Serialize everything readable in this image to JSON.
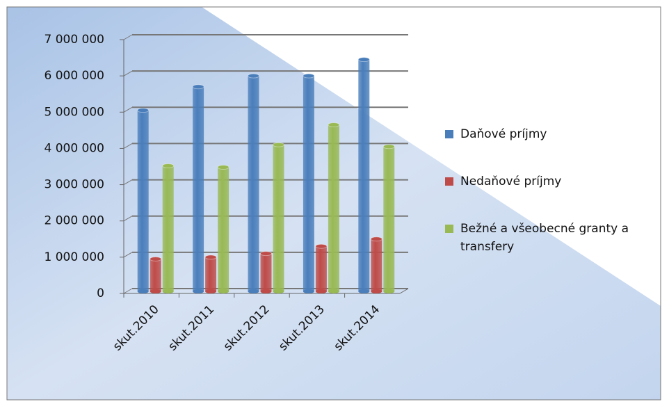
{
  "chart_data": {
    "type": "bar",
    "categories": [
      "skut.2010",
      "skut.2011",
      "skut.2012",
      "skut.2013",
      "skut.2014"
    ],
    "series": [
      {
        "name": "Daňové príjmy",
        "color": "#4a7ebb",
        "values": [
          5050000,
          5700000,
          6000000,
          6000000,
          6450000
        ]
      },
      {
        "name": "Nedaňové príjmy",
        "color": "#be4b48",
        "values": [
          950000,
          1000000,
          1100000,
          1300000,
          1500000
        ]
      },
      {
        "name": "Bežné a všeobecné granty a transfery",
        "color": "#98b954",
        "values": [
          3520000,
          3480000,
          4100000,
          4650000,
          4050000
        ]
      }
    ],
    "ylim": [
      0,
      7000000
    ],
    "yticks": [
      {
        "value": 0,
        "label": "0"
      },
      {
        "value": 1000000,
        "label": "1 000 000"
      },
      {
        "value": 2000000,
        "label": "2 000 000"
      },
      {
        "value": 3000000,
        "label": "3 000 000"
      },
      {
        "value": 4000000,
        "label": "4 000 000"
      },
      {
        "value": 5000000,
        "label": "5 000 000"
      },
      {
        "value": 6000000,
        "label": "6 000 000"
      },
      {
        "value": 7000000,
        "label": "7 000 000"
      }
    ],
    "grid": true,
    "legend": "right"
  }
}
